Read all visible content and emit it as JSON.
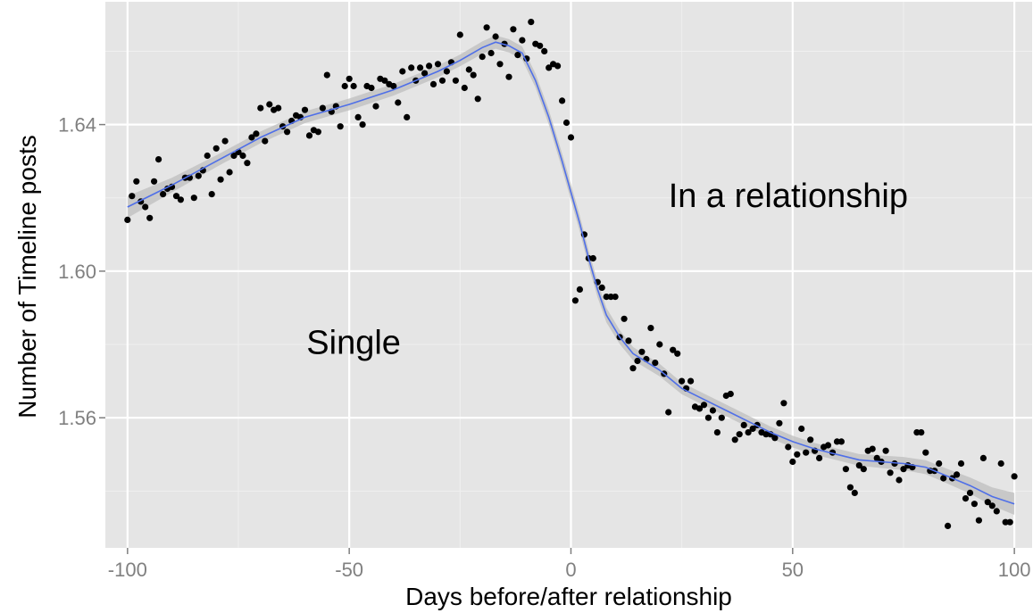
{
  "chart_data": {
    "type": "scatter",
    "title": "",
    "xlabel": "Days before/after relationship",
    "ylabel": "Number of Timeline posts",
    "xlim": [
      -105,
      104
    ],
    "ylim": [
      1.5245,
      1.6735
    ],
    "x_ticks": [
      -100,
      -50,
      0,
      50,
      100
    ],
    "x_tick_labels": [
      "-100",
      "-50",
      "0",
      "50",
      "100"
    ],
    "y_ticks": [
      1.56,
      1.6,
      1.64
    ],
    "y_tick_labels": [
      "1.56",
      "1.60",
      "1.64"
    ],
    "grid": true,
    "background": "#e5e5e5",
    "grid_major_color": "#ffffff",
    "grid_minor_color": "#f0f0f0",
    "point_color": "#000000",
    "smooth_color": "#4f6fe8",
    "band_color": "#bdbdbd",
    "annotations": [
      {
        "text": "Single",
        "x": -49,
        "y": 1.5775
      },
      {
        "text": "In a relationship",
        "x": 49,
        "y": 1.6175
      }
    ],
    "series": [
      {
        "kind": "points",
        "points": [
          [
            -100,
            1.614
          ],
          [
            -99,
            1.6205
          ],
          [
            -98,
            1.6245
          ],
          [
            -97,
            1.619
          ],
          [
            -96,
            1.6175
          ],
          [
            -95,
            1.6145
          ],
          [
            -94,
            1.6245
          ],
          [
            -93,
            1.6305
          ],
          [
            -92,
            1.621
          ],
          [
            -91,
            1.6225
          ],
          [
            -90,
            1.623
          ],
          [
            -89,
            1.6205
          ],
          [
            -88,
            1.6195
          ],
          [
            -87,
            1.6255
          ],
          [
            -86,
            1.6255
          ],
          [
            -85,
            1.62
          ],
          [
            -84,
            1.626
          ],
          [
            -83,
            1.6275
          ],
          [
            -82,
            1.6315
          ],
          [
            -81,
            1.621
          ],
          [
            -80,
            1.6335
          ],
          [
            -79,
            1.625
          ],
          [
            -78,
            1.6355
          ],
          [
            -77,
            1.627
          ],
          [
            -76,
            1.6315
          ],
          [
            -75,
            1.6325
          ],
          [
            -74,
            1.6315
          ],
          [
            -73,
            1.6295
          ],
          [
            -72,
            1.6365
          ],
          [
            -71,
            1.6375
          ],
          [
            -70,
            1.6445
          ],
          [
            -69,
            1.6355
          ],
          [
            -68,
            1.6455
          ],
          [
            -67,
            1.644
          ],
          [
            -66,
            1.6445
          ],
          [
            -65,
            1.6395
          ],
          [
            -64,
            1.638
          ],
          [
            -63,
            1.641
          ],
          [
            -62,
            1.6425
          ],
          [
            -61,
            1.642
          ],
          [
            -60,
            1.644
          ],
          [
            -59,
            1.637
          ],
          [
            -58,
            1.6385
          ],
          [
            -57,
            1.638
          ],
          [
            -56,
            1.6445
          ],
          [
            -55,
            1.6535
          ],
          [
            -54,
            1.6435
          ],
          [
            -53,
            1.645
          ],
          [
            -52,
            1.6395
          ],
          [
            -51,
            1.6505
          ],
          [
            -50,
            1.6525
          ],
          [
            -49,
            1.6505
          ],
          [
            -48,
            1.642
          ],
          [
            -47,
            1.64
          ],
          [
            -46,
            1.6505
          ],
          [
            -45,
            1.65
          ],
          [
            -44,
            1.645
          ],
          [
            -43,
            1.6525
          ],
          [
            -42,
            1.652
          ],
          [
            -41,
            1.651
          ],
          [
            -40,
            1.6505
          ],
          [
            -39,
            1.646
          ],
          [
            -38,
            1.6545
          ],
          [
            -37,
            1.642
          ],
          [
            -36,
            1.6555
          ],
          [
            -35,
            1.652
          ],
          [
            -34,
            1.6555
          ],
          [
            -33,
            1.654
          ],
          [
            -32,
            1.656
          ],
          [
            -31,
            1.651
          ],
          [
            -30,
            1.6565
          ],
          [
            -29,
            1.652
          ],
          [
            -28,
            1.6545
          ],
          [
            -27,
            1.657
          ],
          [
            -26,
            1.652
          ],
          [
            -25,
            1.6645
          ],
          [
            -24,
            1.65
          ],
          [
            -23,
            1.655
          ],
          [
            -22,
            1.6535
          ],
          [
            -21,
            1.647
          ],
          [
            -20,
            1.6585
          ],
          [
            -19,
            1.6665
          ],
          [
            -18,
            1.6595
          ],
          [
            -17,
            1.664
          ],
          [
            -16,
            1.6565
          ],
          [
            -15,
            1.662
          ],
          [
            -14,
            1.653
          ],
          [
            -13,
            1.666
          ],
          [
            -12,
            1.659
          ],
          [
            -11,
            1.663
          ],
          [
            -10,
            1.658
          ],
          [
            -9,
            1.668
          ],
          [
            -8,
            1.662
          ],
          [
            -7,
            1.6615
          ],
          [
            -6,
            1.66
          ],
          [
            -5,
            1.6555
          ],
          [
            -4,
            1.6565
          ],
          [
            -3,
            1.656
          ],
          [
            -2,
            1.6465
          ],
          [
            -1,
            1.6405
          ],
          [
            0,
            1.6365
          ],
          [
            1,
            1.592
          ],
          [
            2,
            1.595
          ],
          [
            3,
            1.61
          ],
          [
            4,
            1.6035
          ],
          [
            5,
            1.6035
          ],
          [
            6,
            1.597
          ],
          [
            7,
            1.5955
          ],
          [
            8,
            1.593
          ],
          [
            9,
            1.593
          ],
          [
            10,
            1.593
          ],
          [
            11,
            1.582
          ],
          [
            12,
            1.587
          ],
          [
            13,
            1.581
          ],
          [
            14,
            1.5735
          ],
          [
            15,
            1.5755
          ],
          [
            16,
            1.578
          ],
          [
            17,
            1.576
          ],
          [
            18,
            1.5845
          ],
          [
            19,
            1.575
          ],
          [
            20,
            1.58
          ],
          [
            21,
            1.572
          ],
          [
            22,
            1.5615
          ],
          [
            23,
            1.5785
          ],
          [
            24,
            1.5775
          ],
          [
            25,
            1.57
          ],
          [
            26,
            1.568
          ],
          [
            27,
            1.57
          ],
          [
            28,
            1.563
          ],
          [
            29,
            1.5625
          ],
          [
            30,
            1.5635
          ],
          [
            31,
            1.56
          ],
          [
            32,
            1.562
          ],
          [
            33,
            1.556
          ],
          [
            34,
            1.56
          ],
          [
            35,
            1.566
          ],
          [
            36,
            1.5665
          ],
          [
            37,
            1.554
          ],
          [
            38,
            1.5555
          ],
          [
            39,
            1.558
          ],
          [
            40,
            1.556
          ],
          [
            41,
            1.557
          ],
          [
            42,
            1.558
          ],
          [
            43,
            1.556
          ],
          [
            44,
            1.5555
          ],
          [
            45,
            1.5555
          ],
          [
            46,
            1.5545
          ],
          [
            47,
            1.5585
          ],
          [
            48,
            1.564
          ],
          [
            49,
            1.552
          ],
          [
            50,
            1.548
          ],
          [
            51,
            1.55
          ],
          [
            52,
            1.557
          ],
          [
            53,
            1.5505
          ],
          [
            54,
            1.554
          ],
          [
            55,
            1.551
          ],
          [
            56,
            1.549
          ],
          [
            57,
            1.552
          ],
          [
            58,
            1.5525
          ],
          [
            59,
            1.5505
          ],
          [
            60,
            1.5535
          ],
          [
            61,
            1.5535
          ],
          [
            62,
            1.546
          ],
          [
            63,
            1.541
          ],
          [
            64,
            1.5395
          ],
          [
            65,
            1.547
          ],
          [
            66,
            1.546
          ],
          [
            67,
            1.551
          ],
          [
            68,
            1.5515
          ],
          [
            69,
            1.549
          ],
          [
            70,
            1.548
          ],
          [
            71,
            1.551
          ],
          [
            72,
            1.545
          ],
          [
            73,
            1.5475
          ],
          [
            74,
            1.543
          ],
          [
            75,
            1.546
          ],
          [
            76,
            1.547
          ],
          [
            77,
            1.5465
          ],
          [
            78,
            1.556
          ],
          [
            79,
            1.556
          ],
          [
            80,
            1.5505
          ],
          [
            81,
            1.5455
          ],
          [
            82,
            1.5455
          ],
          [
            83,
            1.5475
          ],
          [
            84,
            1.5435
          ],
          [
            85,
            1.5305
          ],
          [
            86,
            1.5435
          ],
          [
            87,
            1.5445
          ],
          [
            88,
            1.5475
          ],
          [
            89,
            1.538
          ],
          [
            90,
            1.5395
          ],
          [
            91,
            1.5365
          ],
          [
            92,
            1.532
          ],
          [
            93,
            1.549
          ],
          [
            94,
            1.537
          ],
          [
            95,
            1.536
          ],
          [
            96,
            1.5345
          ],
          [
            97,
            1.5475
          ],
          [
            98,
            1.5315
          ],
          [
            99,
            1.5315
          ],
          [
            100,
            1.544
          ]
        ]
      },
      {
        "kind": "smooth",
        "points": [
          [
            -100,
            1.6175
          ],
          [
            -90,
            1.6235
          ],
          [
            -80,
            1.63
          ],
          [
            -70,
            1.6365
          ],
          [
            -60,
            1.642
          ],
          [
            -50,
            1.6455
          ],
          [
            -40,
            1.6495
          ],
          [
            -30,
            1.6545
          ],
          [
            -25,
            1.6575
          ],
          [
            -20,
            1.661
          ],
          [
            -17,
            1.6625
          ],
          [
            -14,
            1.6615
          ],
          [
            -11,
            1.6595
          ],
          [
            -8,
            1.652
          ],
          [
            -5,
            1.642
          ],
          [
            -2,
            1.63
          ],
          [
            0,
            1.6215
          ],
          [
            2,
            1.613
          ],
          [
            4,
            1.6035
          ],
          [
            6,
            1.595
          ],
          [
            8,
            1.588
          ],
          [
            11,
            1.582
          ],
          [
            14,
            1.5775
          ],
          [
            20,
            1.573
          ],
          [
            25,
            1.568
          ],
          [
            30,
            1.565
          ],
          [
            35,
            1.562
          ],
          [
            40,
            1.559
          ],
          [
            45,
            1.556
          ],
          [
            50,
            1.5535
          ],
          [
            55,
            1.5515
          ],
          [
            60,
            1.55
          ],
          [
            65,
            1.5485
          ],
          [
            70,
            1.548
          ],
          [
            75,
            1.5475
          ],
          [
            80,
            1.5465
          ],
          [
            85,
            1.544
          ],
          [
            90,
            1.5415
          ],
          [
            95,
            1.5385
          ],
          [
            100,
            1.5365
          ]
        ],
        "band_halfwidth": [
          0.003,
          0.002,
          0.0016,
          0.0016,
          0.0016,
          0.0016,
          0.0016,
          0.0016,
          0.0016,
          0.0017,
          0.0018,
          0.0018,
          0.0018,
          0.0019,
          0.002,
          0.0021,
          0.0022,
          0.0022,
          0.0022,
          0.0021,
          0.002,
          0.0019,
          0.0018,
          0.0017,
          0.0016,
          0.0016,
          0.0016,
          0.0016,
          0.0016,
          0.0016,
          0.0016,
          0.0016,
          0.0016,
          0.0017,
          0.0018,
          0.0019,
          0.002,
          0.0022,
          0.0025,
          0.003
        ]
      }
    ]
  }
}
